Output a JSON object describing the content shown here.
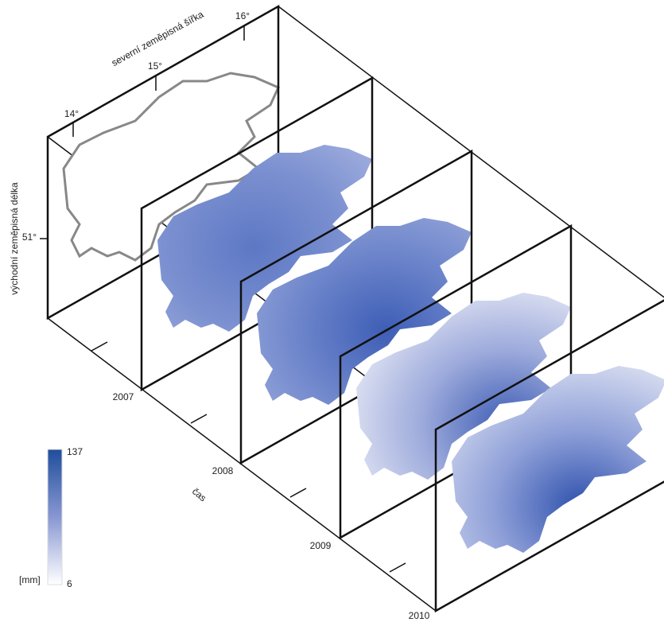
{
  "axes": {
    "latitude_label": "severní zeměpisná šířka",
    "longitude_label": "východní zeměpisná délka",
    "time_label": "čas",
    "latitude_ticks": [
      "14°",
      "15°",
      "16°"
    ],
    "longitude_ticks": [
      "51°"
    ]
  },
  "years": [
    "2007",
    "2008",
    "2009",
    "2010"
  ],
  "legend": {
    "unit": "[mm]",
    "max": 137,
    "min": 6
  }
}
